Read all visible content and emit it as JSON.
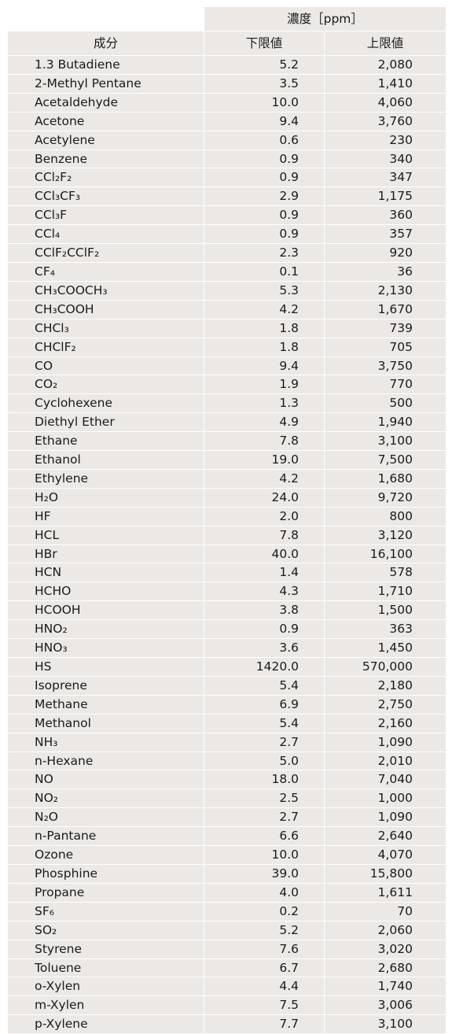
{
  "table": {
    "unit_header": "濃度［ppm］",
    "columns": [
      "成分",
      "下限値",
      "上限値"
    ],
    "rows": [
      {
        "name": "1.3 Butadiene",
        "low": "5.2",
        "high": "2,080"
      },
      {
        "name": "2-Methyl Pentane",
        "low": "3.5",
        "high": "1,410"
      },
      {
        "name": "Acetaldehyde",
        "low": "10.0",
        "high": "4,060"
      },
      {
        "name": "Acetone",
        "low": "9.4",
        "high": "3,760"
      },
      {
        "name": "Acetylene",
        "low": "0.6",
        "high": "230"
      },
      {
        "name": "Benzene",
        "low": "0.9",
        "high": "340"
      },
      {
        "name": "CCl₂F₂",
        "low": "0.9",
        "high": "347"
      },
      {
        "name": "CCl₃CF₃",
        "low": "2.9",
        "high": "1,175"
      },
      {
        "name": "CCl₃F",
        "low": "0.9",
        "high": "360"
      },
      {
        "name": "CCl₄",
        "low": "0.9",
        "high": "357"
      },
      {
        "name": "CClF₂CClF₂",
        "low": "2.3",
        "high": "920"
      },
      {
        "name": "CF₄",
        "low": "0.1",
        "high": "36"
      },
      {
        "name": "CH₃COOCH₃",
        "low": "5.3",
        "high": "2,130"
      },
      {
        "name": "CH₃COOH",
        "low": "4.2",
        "high": "1,670"
      },
      {
        "name": "CHCl₃",
        "low": "1.8",
        "high": "739"
      },
      {
        "name": "CHClF₂",
        "low": "1.8",
        "high": "705"
      },
      {
        "name": "CO",
        "low": "9.4",
        "high": "3,750"
      },
      {
        "name": "CO₂",
        "low": "1.9",
        "high": "770"
      },
      {
        "name": "Cyclohexene",
        "low": "1.3",
        "high": "500"
      },
      {
        "name": "Diethyl Ether",
        "low": "4.9",
        "high": "1,940"
      },
      {
        "name": "Ethane",
        "low": "7.8",
        "high": "3,100"
      },
      {
        "name": "Ethanol",
        "low": "19.0",
        "high": "7,500"
      },
      {
        "name": "Ethylene",
        "low": "4.2",
        "high": "1,680"
      },
      {
        "name": "H₂O",
        "low": "24.0",
        "high": "9,720"
      },
      {
        "name": "HF",
        "low": "2.0",
        "high": "800"
      },
      {
        "name": "HCL",
        "low": "7.8",
        "high": "3,120"
      },
      {
        "name": "HBr",
        "low": "40.0",
        "high": "16,100"
      },
      {
        "name": "HCN",
        "low": "1.4",
        "high": "578"
      },
      {
        "name": "HCHO",
        "low": "4.3",
        "high": "1,710"
      },
      {
        "name": "HCOOH",
        "low": "3.8",
        "high": "1,500"
      },
      {
        "name": "HNO₂",
        "low": "0.9",
        "high": "363"
      },
      {
        "name": "HNO₃",
        "low": "3.6",
        "high": "1,450"
      },
      {
        "name": "HS",
        "low": "1420.0",
        "high": "570,000"
      },
      {
        "name": "Isoprene",
        "low": "5.4",
        "high": "2,180"
      },
      {
        "name": "Methane",
        "low": "6.9",
        "high": "2,750"
      },
      {
        "name": "Methanol",
        "low": "5.4",
        "high": "2,160"
      },
      {
        "name": "NH₃",
        "low": "2.7",
        "high": "1,090"
      },
      {
        "name": "n-Hexane",
        "low": "5.0",
        "high": "2,010"
      },
      {
        "name": "NO",
        "low": "18.0",
        "high": "7,040"
      },
      {
        "name": "NO₂",
        "low": "2.5",
        "high": "1,000"
      },
      {
        "name": "N₂O",
        "low": "2.7",
        "high": "1,090"
      },
      {
        "name": "n-Pantane",
        "low": "6.6",
        "high": "2,640"
      },
      {
        "name": "Ozone",
        "low": "10.0",
        "high": "4,070"
      },
      {
        "name": "Phosphine",
        "low": "39.0",
        "high": "15,800"
      },
      {
        "name": "Propane",
        "low": "4.0",
        "high": "1,611"
      },
      {
        "name": "SF₆",
        "low": "0.2",
        "high": "70"
      },
      {
        "name": "SO₂",
        "low": "5.2",
        "high": "2,060"
      },
      {
        "name": "Styrene",
        "low": "7.6",
        "high": "3,020"
      },
      {
        "name": "Toluene",
        "low": "6.7",
        "high": "2,680"
      },
      {
        "name": "o-Xylen",
        "low": "4.4",
        "high": "1,740"
      },
      {
        "name": "m-Xylen",
        "low": "7.5",
        "high": "3,006"
      },
      {
        "name": "p-Xylene",
        "low": "7.7",
        "high": "3,100"
      }
    ]
  }
}
